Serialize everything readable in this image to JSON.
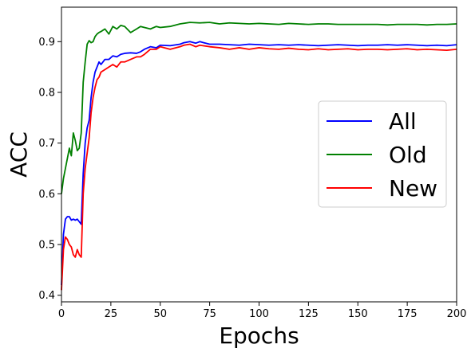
{
  "chart_data": {
    "type": "line",
    "title": "",
    "xlabel": "Epochs",
    "ylabel": "ACC",
    "xlim": [
      0,
      200
    ],
    "ylim": [
      0.387,
      0.968
    ],
    "xticks": [
      0,
      25,
      50,
      75,
      100,
      125,
      150,
      175,
      200
    ],
    "yticks": [
      0.4,
      0.5,
      0.6,
      0.7,
      0.8,
      0.9
    ],
    "grid": false,
    "legend_position": "center-right",
    "series": [
      {
        "name": "All",
        "color": "#0000ff",
        "x": [
          0,
          1,
          2,
          3,
          4,
          5,
          6,
          7,
          8,
          9,
          10,
          11,
          12,
          13,
          14,
          15,
          16,
          17,
          18,
          19,
          20,
          22,
          24,
          26,
          28,
          30,
          32,
          35,
          38,
          40,
          42,
          45,
          48,
          50,
          55,
          60,
          62,
          65,
          68,
          70,
          75,
          80,
          85,
          90,
          95,
          100,
          105,
          110,
          115,
          120,
          125,
          130,
          135,
          140,
          145,
          150,
          155,
          160,
          165,
          170,
          175,
          180,
          185,
          190,
          195,
          200
        ],
        "y": [
          0.42,
          0.52,
          0.55,
          0.555,
          0.555,
          0.548,
          0.55,
          0.548,
          0.55,
          0.545,
          0.54,
          0.64,
          0.7,
          0.73,
          0.745,
          0.79,
          0.82,
          0.84,
          0.85,
          0.86,
          0.855,
          0.865,
          0.865,
          0.872,
          0.87,
          0.875,
          0.877,
          0.878,
          0.877,
          0.88,
          0.885,
          0.89,
          0.888,
          0.893,
          0.892,
          0.895,
          0.898,
          0.9,
          0.897,
          0.9,
          0.895,
          0.895,
          0.894,
          0.893,
          0.895,
          0.894,
          0.893,
          0.894,
          0.893,
          0.894,
          0.893,
          0.892,
          0.893,
          0.894,
          0.893,
          0.892,
          0.893,
          0.893,
          0.894,
          0.893,
          0.894,
          0.893,
          0.892,
          0.893,
          0.892,
          0.894
        ]
      },
      {
        "name": "Old",
        "color": "#008000",
        "x": [
          0,
          1,
          2,
          3,
          4,
          5,
          6,
          7,
          8,
          9,
          10,
          11,
          12,
          13,
          14,
          15,
          16,
          17,
          18,
          19,
          20,
          22,
          24,
          26,
          28,
          30,
          32,
          35,
          38,
          40,
          42,
          45,
          48,
          50,
          55,
          60,
          65,
          70,
          75,
          80,
          85,
          90,
          95,
          100,
          105,
          110,
          115,
          120,
          125,
          130,
          135,
          140,
          145,
          150,
          155,
          160,
          165,
          170,
          175,
          180,
          185,
          190,
          195,
          200
        ],
        "y": [
          0.6,
          0.63,
          0.65,
          0.67,
          0.69,
          0.675,
          0.72,
          0.705,
          0.685,
          0.69,
          0.72,
          0.82,
          0.86,
          0.895,
          0.902,
          0.898,
          0.9,
          0.91,
          0.915,
          0.918,
          0.92,
          0.925,
          0.915,
          0.93,
          0.925,
          0.932,
          0.93,
          0.918,
          0.925,
          0.93,
          0.928,
          0.925,
          0.93,
          0.928,
          0.93,
          0.935,
          0.938,
          0.937,
          0.938,
          0.935,
          0.937,
          0.936,
          0.935,
          0.936,
          0.935,
          0.934,
          0.936,
          0.935,
          0.934,
          0.935,
          0.935,
          0.934,
          0.934,
          0.934,
          0.934,
          0.934,
          0.933,
          0.934,
          0.934,
          0.934,
          0.933,
          0.934,
          0.934,
          0.935
        ]
      },
      {
        "name": "New",
        "color": "#ff0000",
        "x": [
          0,
          1,
          2,
          3,
          4,
          5,
          6,
          7,
          8,
          9,
          10,
          11,
          12,
          13,
          14,
          15,
          16,
          17,
          18,
          19,
          20,
          22,
          24,
          26,
          28,
          30,
          32,
          35,
          38,
          40,
          42,
          45,
          48,
          50,
          55,
          60,
          62,
          65,
          68,
          70,
          75,
          80,
          85,
          90,
          95,
          100,
          105,
          110,
          115,
          120,
          125,
          130,
          135,
          140,
          145,
          150,
          155,
          160,
          165,
          170,
          175,
          180,
          185,
          190,
          195,
          200
        ],
        "y": [
          0.41,
          0.49,
          0.515,
          0.51,
          0.5,
          0.495,
          0.48,
          0.475,
          0.49,
          0.48,
          0.475,
          0.6,
          0.65,
          0.68,
          0.71,
          0.76,
          0.79,
          0.81,
          0.825,
          0.83,
          0.84,
          0.845,
          0.85,
          0.855,
          0.85,
          0.86,
          0.86,
          0.865,
          0.87,
          0.87,
          0.875,
          0.885,
          0.885,
          0.89,
          0.885,
          0.89,
          0.893,
          0.895,
          0.89,
          0.893,
          0.89,
          0.888,
          0.885,
          0.888,
          0.885,
          0.888,
          0.886,
          0.885,
          0.887,
          0.885,
          0.884,
          0.886,
          0.884,
          0.885,
          0.886,
          0.884,
          0.885,
          0.885,
          0.884,
          0.885,
          0.886,
          0.884,
          0.885,
          0.884,
          0.883,
          0.885
        ]
      }
    ]
  }
}
